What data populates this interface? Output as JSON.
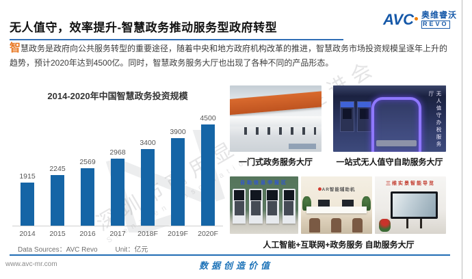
{
  "header": {
    "title": "无人值守，效率提升-智慧政务推动服务型政府转型",
    "logo": {
      "abbr": "AVC",
      "name_cn": "奥维睿沃",
      "name_sub": "REVO"
    }
  },
  "intro": {
    "lead_char": "智",
    "body": "慧政务是政府向公共服务转型的重要途径，随着中央和地方政府机构改革的推进，智慧政务市场投资规模呈逐年上升的趋势，预计2020年达到4500亿。同时，智慧政务服务大厅也出现了各种不同的产品形态。"
  },
  "chart_data": {
    "type": "bar",
    "title": "2014-2020年中国智慧政务投资规模",
    "categories": [
      "2014",
      "2015",
      "2016",
      "2017",
      "2018F",
      "2019F",
      "2020F"
    ],
    "values": [
      1915,
      2245,
      2569,
      2968,
      3400,
      3900,
      4500
    ],
    "unit": "亿元",
    "ylim": [
      0,
      4500
    ],
    "bar_color": "#1565a6",
    "grid": false,
    "value_labels": true,
    "legend": "none"
  },
  "gallery": {
    "row1": [
      {
        "caption": "一门式政务服务大厅"
      },
      {
        "caption": "一站式无人值守自助服务大厅",
        "photo_text": "无人值守办税服务厅"
      }
    ],
    "row2": [
      {
        "photo_text": "自助信息申报区"
      },
      {
        "photo_text": "AR智能辅助机"
      },
      {
        "photo_text": "三维实景智能导览"
      }
    ],
    "row2_caption": "人工智能+互联网+政务服务 自助服务大厅"
  },
  "footer": {
    "data_sources": "Data Sources：AVC Revo",
    "unit": "Unit：亿元",
    "website": "www.avc-mr.com",
    "slogan": "数据创造价值"
  },
  "watermark": {
    "cn": "深圳市商用显示产业促进会",
    "en": "Shenzhen Association"
  },
  "colors": {
    "accent_blue": "#1f6cb4",
    "accent_orange": "#e87722"
  }
}
